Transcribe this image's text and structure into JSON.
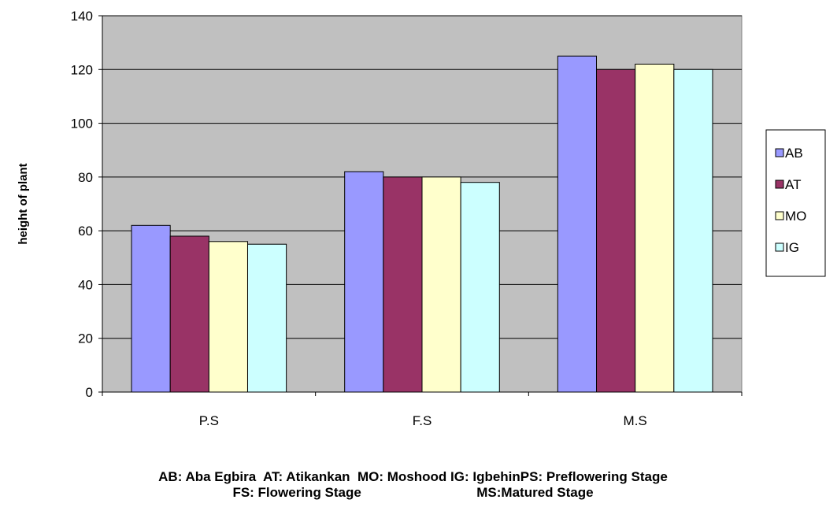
{
  "chart_data": {
    "type": "bar",
    "title": "",
    "xlabel": "",
    "ylabel": "height of plant",
    "categories": [
      "P.S",
      "F.S",
      "M.S"
    ],
    "ylim": [
      0,
      140
    ],
    "yticks": [
      0,
      20,
      40,
      60,
      80,
      100,
      120,
      140
    ],
    "grid": true,
    "plot_background": "#c0c0c0",
    "legend_position": "right",
    "series": [
      {
        "name": "AB",
        "color": "#9999ff",
        "values": [
          62,
          82,
          125
        ]
      },
      {
        "name": "AT",
        "color": "#993366",
        "values": [
          58,
          80,
          120
        ]
      },
      {
        "name": "MO",
        "color": "#ffffcc",
        "values": [
          56,
          80,
          122
        ]
      },
      {
        "name": "IG",
        "color": "#ccffff",
        "values": [
          55,
          78,
          120
        ]
      }
    ]
  },
  "footnote": {
    "line1": "AB: Aba Egbira  AT: Atikankan  MO: Moshood IG: IgbehinPS: Preflowering Stage",
    "line2": "FS: Flowering Stage                               MS:Matured Stage"
  }
}
